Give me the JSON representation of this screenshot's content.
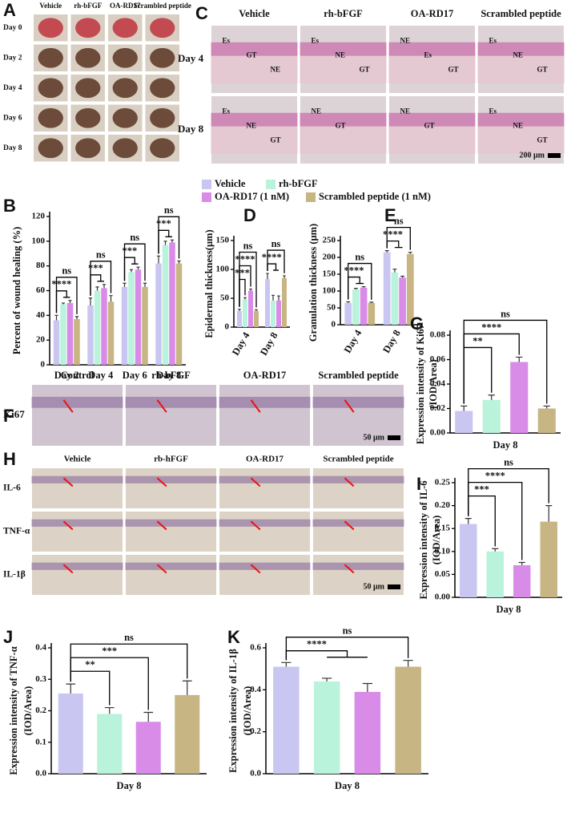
{
  "photos": {
    "A": {
      "panel": "A",
      "columns": [
        "Vehicle",
        "rh-bFGF",
        "OA-RD17",
        "Scrambled peptide"
      ],
      "rows": [
        "Day 0",
        "Day 2",
        "Day 4",
        "Day 6",
        "Day 8"
      ]
    },
    "C": {
      "panel": "C",
      "columns": [
        "Vehicle",
        "rh-bFGF",
        "OA-RD17",
        "Scrambled peptide"
      ],
      "rows": [
        "Day 4",
        "Day 8"
      ],
      "cells": [
        [
          [
            "Es",
            "GT",
            "NE"
          ],
          [
            "Es",
            "NE",
            "GT"
          ],
          [
            "NE",
            "Es",
            "GT"
          ],
          [
            "Es",
            "NE",
            "GT"
          ]
        ],
        [
          [
            "Es",
            "NE",
            "GT"
          ],
          [
            "NE",
            "GT"
          ],
          [
            "NE",
            "GT"
          ],
          [
            "Es",
            "NE",
            "GT"
          ]
        ]
      ],
      "scale": "200 μm"
    },
    "F": {
      "panel": "F",
      "columns": [
        "Control",
        "rh-bFGF",
        "OA-RD17",
        "Scrambled peptide"
      ],
      "rows": [
        "Ki67"
      ],
      "scale": "50 μm"
    },
    "H": {
      "panel": "H",
      "columns": [
        "Vehicle",
        "rb-hFGF",
        "OA-RD17",
        "Scrambled peptide"
      ],
      "rows": [
        "IL-6",
        "TNF-α",
        "IL-1β"
      ],
      "scale": "50 μm"
    }
  },
  "chart_data": [
    {
      "panel": "B",
      "type": "bar",
      "ylabel": [
        "Percent of wound healing (%)"
      ],
      "categories": [
        "Day 2",
        "Day 4",
        "Day 6",
        "Day 8"
      ],
      "series": [
        {
          "name": "Vehicle",
          "color": "#c9c6f2",
          "values": [
            36,
            48,
            63,
            82
          ],
          "errors": [
            4,
            6,
            3,
            6
          ]
        },
        {
          "name": "rh-bFGF",
          "color": "#b9f3dc",
          "values": [
            49,
            60,
            75,
            97
          ],
          "errors": [
            1,
            3,
            2,
            3
          ]
        },
        {
          "name": "OA-RD17 (1 nM)",
          "color": "#d98be8",
          "values": [
            50,
            62,
            77,
            99
          ],
          "errors": [
            2,
            3,
            2,
            2
          ]
        },
        {
          "name": "Scrambled peptide (1 nM)",
          "color": "#c7b584",
          "values": [
            37,
            51,
            63,
            82
          ],
          "errors": [
            2,
            5,
            3,
            2
          ]
        }
      ],
      "ylim": [
        0,
        120
      ],
      "yticks": [
        0,
        20,
        40,
        60,
        80,
        100,
        120
      ],
      "significance": [
        [
          "****",
          "ns"
        ],
        [
          "***",
          "ns"
        ],
        [
          "***",
          "ns"
        ],
        [
          "***",
          "ns"
        ]
      ]
    },
    {
      "panel": "D",
      "type": "bar",
      "ylabel": [
        "Epidermal thickness(μm)"
      ],
      "categories": [
        "Day 4",
        "Day 8"
      ],
      "series": [
        {
          "color": "#c9c6f2",
          "values": [
            28,
            83
          ],
          "errors": [
            3,
            10
          ]
        },
        {
          "color": "#b9f3dc",
          "values": [
            48,
            46
          ],
          "errors": [
            3,
            9
          ]
        },
        {
          "color": "#d98be8",
          "values": [
            63,
            46
          ],
          "errors": [
            3,
            8
          ]
        },
        {
          "color": "#c7b584",
          "values": [
            28,
            85
          ],
          "errors": [
            2,
            4
          ]
        }
      ],
      "ylim": [
        0,
        150
      ],
      "yticks": [
        0,
        50,
        100,
        150
      ],
      "significance": [
        [
          "***",
          "****",
          "ns"
        ],
        [
          "****",
          "ns"
        ]
      ]
    },
    {
      "panel": "E",
      "type": "bar",
      "ylabel": [
        "Granulation thickness (μm)"
      ],
      "categories": [
        "Day 4",
        "Day 8"
      ],
      "series": [
        {
          "color": "#c9c6f2",
          "values": [
            65,
            215
          ],
          "errors": [
            3,
            5
          ]
        },
        {
          "color": "#b9f3dc",
          "values": [
            105,
            155
          ],
          "errors": [
            3,
            10
          ]
        },
        {
          "color": "#d98be8",
          "values": [
            110,
            140
          ],
          "errors": [
            3,
            4
          ]
        },
        {
          "color": "#c7b584",
          "values": [
            65,
            210
          ],
          "errors": [
            2,
            5
          ]
        }
      ],
      "ylim": [
        0,
        250
      ],
      "yticks": [
        0,
        50,
        100,
        150,
        200,
        250
      ],
      "significance": [
        [
          "****",
          "ns"
        ],
        [
          "****",
          "ns"
        ]
      ]
    },
    {
      "panel": "G",
      "type": "bar",
      "ylabel": [
        "Expression intensity of Ki67",
        "(IOD/Area)"
      ],
      "xlabel": "Day 8",
      "values": [
        0.018,
        0.027,
        0.058,
        0.02
      ],
      "errors": [
        0.004,
        0.004,
        0.004,
        0.002
      ],
      "colors": [
        "#c9c6f2",
        "#b9f3dc",
        "#d98be8",
        "#c7b584"
      ],
      "ylim": [
        0,
        0.08
      ],
      "yticks": [
        {
          "value": 0,
          "label": "0.00"
        },
        {
          "value": 0.02,
          "label": "0.02"
        },
        {
          "value": 0.04,
          "label": "0.04"
        },
        {
          "value": 0.06,
          "label": "0.06"
        },
        {
          "value": 0.08,
          "label": "0.08"
        }
      ],
      "significance": [
        "**",
        "****",
        "ns"
      ]
    },
    {
      "panel": "I",
      "type": "bar",
      "ylabel": [
        "Expression intensity of IL-6",
        "(IOD/Area)"
      ],
      "xlabel": "Day 8",
      "values": [
        0.16,
        0.1,
        0.07,
        0.165
      ],
      "errors": [
        0.012,
        0.006,
        0.006,
        0.035
      ],
      "colors": [
        "#c9c6f2",
        "#b9f3dc",
        "#d98be8",
        "#c7b584"
      ],
      "ylim": [
        0,
        0.25
      ],
      "yticks": [
        {
          "value": 0,
          "label": "0.00"
        },
        {
          "value": 0.05,
          "label": "0.05"
        },
        {
          "value": 0.1,
          "label": "0.10"
        },
        {
          "value": 0.15,
          "label": "0.15"
        },
        {
          "value": 0.2,
          "label": "0.20"
        },
        {
          "value": 0.25,
          "label": "0.25"
        }
      ],
      "significance": [
        "***",
        "****",
        "ns"
      ]
    },
    {
      "panel": "J",
      "type": "bar",
      "ylabel": [
        "Expression intensity of TNF-α",
        "(IOD/Area)"
      ],
      "xlabel": "Day 8",
      "values": [
        0.255,
        0.19,
        0.165,
        0.25
      ],
      "errors": [
        0.03,
        0.02,
        0.03,
        0.045
      ],
      "colors": [
        "#c9c6f2",
        "#b9f3dc",
        "#d98be8",
        "#c7b584"
      ],
      "ylim": [
        0,
        0.4
      ],
      "yticks": [
        {
          "value": 0,
          "label": "0.0"
        },
        0.1,
        0.2,
        0.3,
        0.4
      ],
      "significance": [
        "**",
        "***",
        "ns"
      ]
    },
    {
      "panel": "K",
      "type": "bar",
      "ylabel": [
        "Expression intensity of IL-1β",
        "(IOD/Area)"
      ],
      "xlabel": "Day 8",
      "values": [
        0.51,
        0.44,
        0.39,
        0.51
      ],
      "errors": [
        0.02,
        0.015,
        0.04,
        0.03
      ],
      "colors": [
        "#c9c6f2",
        "#b9f3dc",
        "#d98be8",
        "#c7b584"
      ],
      "ylim": [
        0,
        0.6
      ],
      "yticks": [
        {
          "value": 0,
          "label": "0.0"
        },
        0.2,
        0.4,
        0.6
      ],
      "significance": [
        "****",
        "ns"
      ]
    }
  ]
}
